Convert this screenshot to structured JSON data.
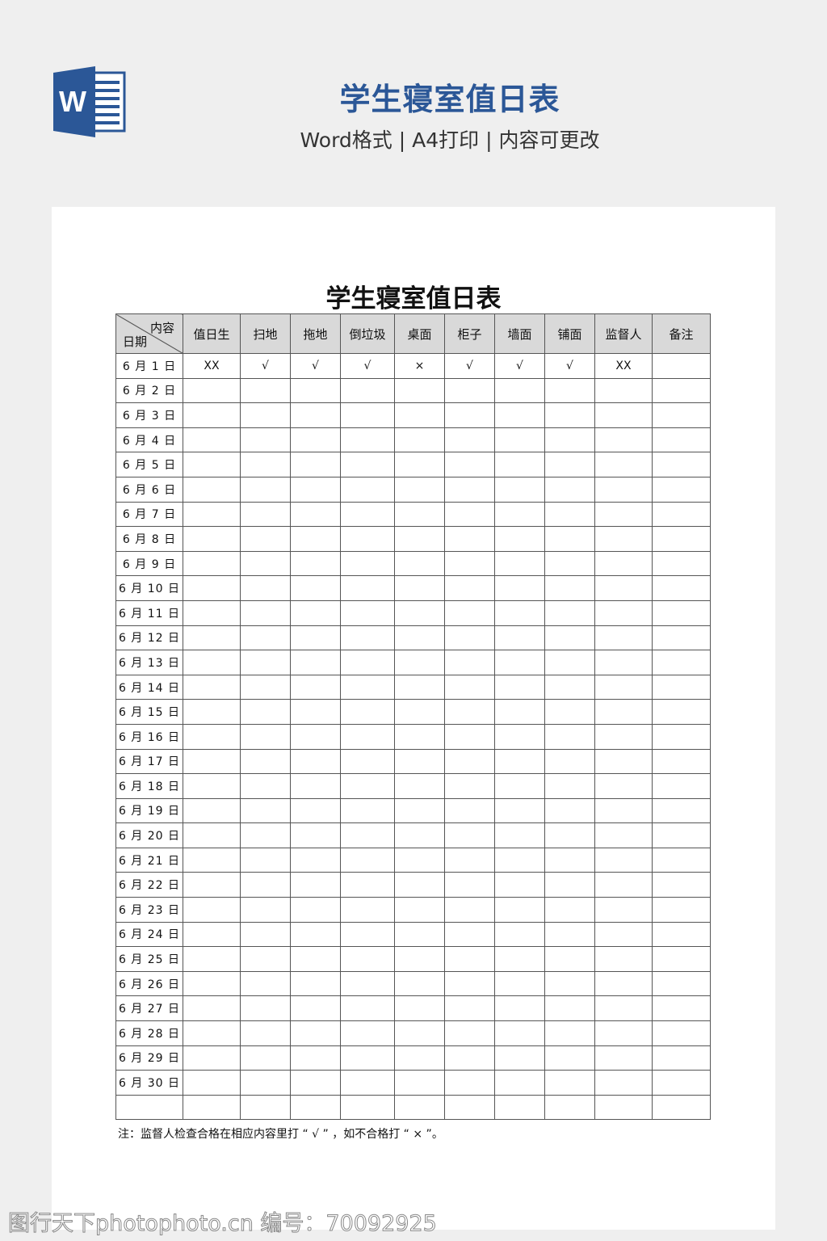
{
  "header": {
    "logo_letter": "W",
    "title": "学生寝室值日表",
    "subtitle": "Word格式 | A4打印 | 内容可更改",
    "accent_color": "#2b5797"
  },
  "document": {
    "title": "学生寝室值日表",
    "table": {
      "corner_top": "内容",
      "corner_bottom": "日期",
      "columns": [
        "值日生",
        "扫地",
        "拖地",
        "倒垃圾",
        "桌面",
        "柜子",
        "墙面",
        "铺面",
        "监督人",
        "备注"
      ],
      "rows": [
        {
          "date": "6 月 1 日",
          "cells": [
            "XX",
            "√",
            "√",
            "√",
            "×",
            "√",
            "√",
            "√",
            "XX",
            ""
          ]
        },
        {
          "date": "6 月 2 日"
        },
        {
          "date": "6 月 3 日"
        },
        {
          "date": "6 月 4 日"
        },
        {
          "date": "6 月 5 日"
        },
        {
          "date": "6 月 6 日"
        },
        {
          "date": "6 月 7 日"
        },
        {
          "date": "6 月 8 日"
        },
        {
          "date": "6 月 9 日"
        },
        {
          "date": "6 月 10 日"
        },
        {
          "date": "6 月 11 日"
        },
        {
          "date": "6 月 12 日"
        },
        {
          "date": "6 月 13 日"
        },
        {
          "date": "6 月 14 日"
        },
        {
          "date": "6 月 15 日"
        },
        {
          "date": "6 月 16 日"
        },
        {
          "date": "6 月 17 日"
        },
        {
          "date": "6 月 18 日"
        },
        {
          "date": "6 月 19 日"
        },
        {
          "date": "6 月 20 日"
        },
        {
          "date": "6 月 21 日"
        },
        {
          "date": "6 月 22 日"
        },
        {
          "date": "6 月 23 日"
        },
        {
          "date": "6 月 24 日"
        },
        {
          "date": "6 月 25 日"
        },
        {
          "date": "6 月 26 日"
        },
        {
          "date": "6 月 27 日"
        },
        {
          "date": "6 月 28 日"
        },
        {
          "date": "6 月 29 日"
        },
        {
          "date": "6 月 30 日"
        },
        {
          "date": ""
        }
      ]
    },
    "note": "注：监督人检查合格在相应内容里打 “ √ ” ，如不合格打 “ × ”。"
  },
  "watermark": "图行天下photophoto.cn 编号：70092925"
}
